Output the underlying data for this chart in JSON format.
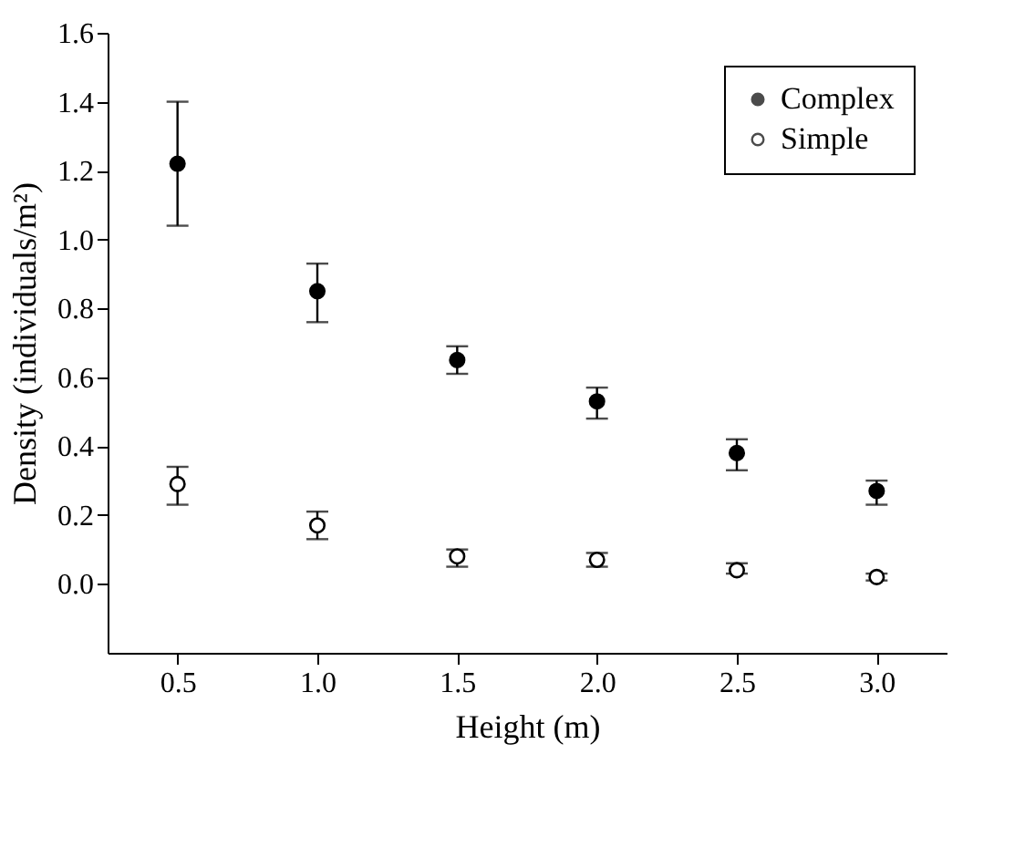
{
  "chart_data": {
    "type": "scatter",
    "xlabel": "Height (m)",
    "ylabel": "Density (individuals/m²)",
    "x": [
      0.5,
      1.0,
      1.5,
      2.0,
      2.5,
      3.0
    ],
    "xlim": [
      0.25,
      3.25
    ],
    "xticks": [
      {
        "value": 0.5,
        "label": "0.5"
      },
      {
        "value": 1.0,
        "label": "1.0"
      },
      {
        "value": 1.5,
        "label": "1.5"
      },
      {
        "value": 2.0,
        "label": "2.0"
      },
      {
        "value": 2.5,
        "label": "2.5"
      },
      {
        "value": 3.0,
        "label": "3.0"
      }
    ],
    "ylim": [
      -0.2,
      1.6
    ],
    "yticks": [
      {
        "value": 0,
        "label": "0.0"
      },
      {
        "value": 0.2,
        "label": "0.2"
      },
      {
        "value": 0.4,
        "label": "0.4"
      },
      {
        "value": 0.6,
        "label": "0.6"
      },
      {
        "value": 0.8,
        "label": "0.8"
      },
      {
        "value": 1.0,
        "label": "1.0"
      },
      {
        "value": 1.2,
        "label": "1.2"
      },
      {
        "value": 1.4,
        "label": "1.4"
      },
      {
        "value": 1.6,
        "label": "1.6"
      }
    ],
    "marker": "circle",
    "grid": false,
    "legend": "top right",
    "series": [
      {
        "name": "Complex",
        "color": "#000000",
        "values": [
          1.22,
          0.85,
          0.65,
          0.53,
          0.38,
          0.27
        ],
        "errors": [
          [
            1.04,
            1.4
          ],
          [
            0.76,
            0.93
          ],
          [
            0.61,
            0.69
          ],
          [
            0.48,
            0.57
          ],
          [
            0.33,
            0.42
          ],
          [
            0.23,
            0.3
          ]
        ]
      },
      {
        "name": "Simple",
        "color": "#000000",
        "values": [
          0.29,
          0.17,
          0.08,
          0.07,
          0.04,
          0.02
        ],
        "errors": [
          [
            0.23,
            0.34
          ],
          [
            0.13,
            0.21
          ],
          [
            0.05,
            0.1
          ],
          [
            0.05,
            0.09
          ],
          [
            0.03,
            0.06
          ],
          [
            0.01,
            0.03
          ]
        ]
      }
    ]
  }
}
